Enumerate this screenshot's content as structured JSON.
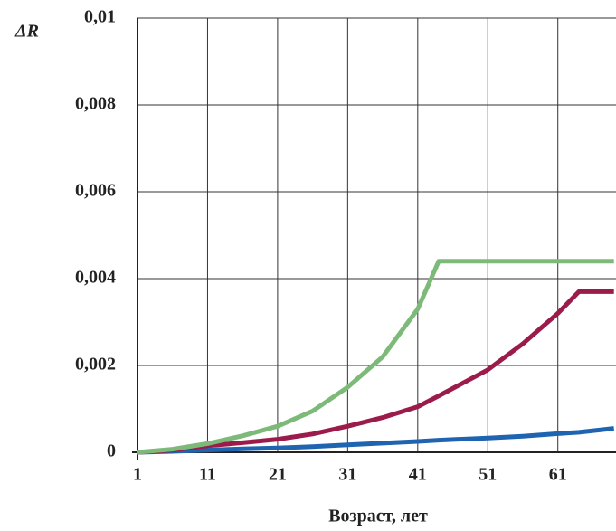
{
  "chart_data": {
    "type": "line",
    "y_label": "ΔR",
    "x_label": "Возраст, лет",
    "x": [
      1,
      6,
      11,
      16,
      21,
      26,
      31,
      36,
      41,
      44,
      51,
      56,
      61,
      64,
      69
    ],
    "series": [
      {
        "color": "#1f64b0",
        "values": [
          0,
          2e-05,
          5e-05,
          8e-05,
          0.0001,
          0.00013,
          0.00017,
          0.00021,
          0.00025,
          0.00028,
          0.00033,
          0.00037,
          0.00043,
          0.00046,
          0.00055
        ]
      },
      {
        "color": "#9b1b4b",
        "values": [
          0,
          5e-05,
          0.00015,
          0.00022,
          0.0003,
          0.00042,
          0.0006,
          0.0008,
          0.00105,
          0.0013,
          0.0019,
          0.0025,
          0.0032,
          0.0037,
          0.0037
        ]
      },
      {
        "color": "#7dba7a",
        "values": [
          0,
          7e-05,
          0.0002,
          0.00038,
          0.0006,
          0.00095,
          0.0015,
          0.0022,
          0.0033,
          0.0044,
          0.0044,
          0.0044,
          0.0044,
          0.0044,
          0.0044
        ]
      }
    ],
    "xlim": [
      1,
      69.3
    ],
    "xticks": [
      1,
      11,
      21,
      31,
      41,
      51,
      61
    ],
    "ylim": [
      0,
      0.01
    ],
    "yticks": [
      0,
      {
        "value": 0.002,
        "label": "0,002"
      },
      {
        "value": 0.004,
        "label": "0,004"
      },
      {
        "value": 0.006,
        "label": "0,006"
      },
      {
        "value": 0.008,
        "label": "0,008"
      },
      {
        "value": 0.01,
        "label": "0,01"
      }
    ],
    "grid": true
  }
}
